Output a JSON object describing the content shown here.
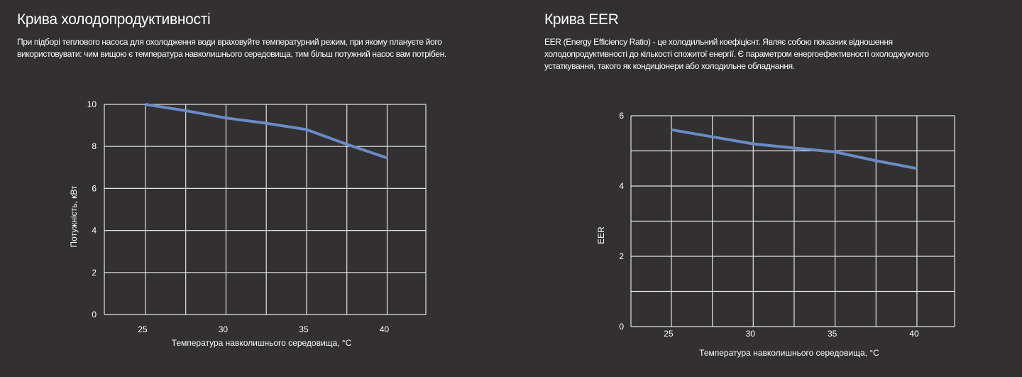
{
  "sections": [
    {
      "title": "Крива холодопродуктивності",
      "description_lines": [
        "При підборі теплового насоса для охолодження води враховуйте температурний режим, при якому плануєте його",
        "використовувати: чим вищою є температура навколишнього середовища, тим більш потужний насос вам потрібен."
      ]
    },
    {
      "title": "Крива EER",
      "description_lines": [
        "EER (Energy Efficiency Ratio) - це холодильний коефіцієнт. Являє собою показник відношення",
        "холодопродуктивності до кількості спожитої енергії. Є параметром енергоефективності охолоджуючого",
        "устаткування, такого як кондиціонери або холодильне обладнання."
      ]
    }
  ],
  "chart_data": [
    {
      "type": "line",
      "title": "",
      "xlabel": "Температура навколишнього середовища, °C",
      "ylabel": "Потужність, кВт",
      "x": [
        25,
        27.5,
        30,
        32.5,
        35,
        37.5,
        40
      ],
      "values": [
        10,
        9.7,
        9.35,
        9.1,
        8.8,
        8.1,
        7.45
      ],
      "xticks": [
        "25",
        "30",
        "35",
        "40"
      ],
      "yticks": [
        "0",
        "2",
        "4",
        "6",
        "8",
        "10"
      ],
      "xlim": [
        22.45,
        42.4
      ],
      "ylim": [
        0,
        10
      ],
      "grid": true,
      "line_color": "#6b8ac6",
      "grid_color": "#e4e4e4"
    },
    {
      "type": "line",
      "title": "",
      "xlabel": "Температура навколишнього середовища, °C",
      "ylabel": "EER",
      "x": [
        25,
        27.5,
        30,
        32.5,
        35,
        37.5,
        40
      ],
      "values": [
        5.6,
        5.4,
        5.2,
        5.08,
        4.97,
        4.72,
        4.5
      ],
      "xticks": [
        "25",
        "30",
        "35",
        "40"
      ],
      "yticks": [
        "0",
        "2",
        "4",
        "6"
      ],
      "xlim": [
        22.53,
        42.3
      ],
      "ylim": [
        0,
        6
      ],
      "grid": true,
      "line_color": "#6b8ac6",
      "grid_color": "#e4e4e4"
    }
  ]
}
